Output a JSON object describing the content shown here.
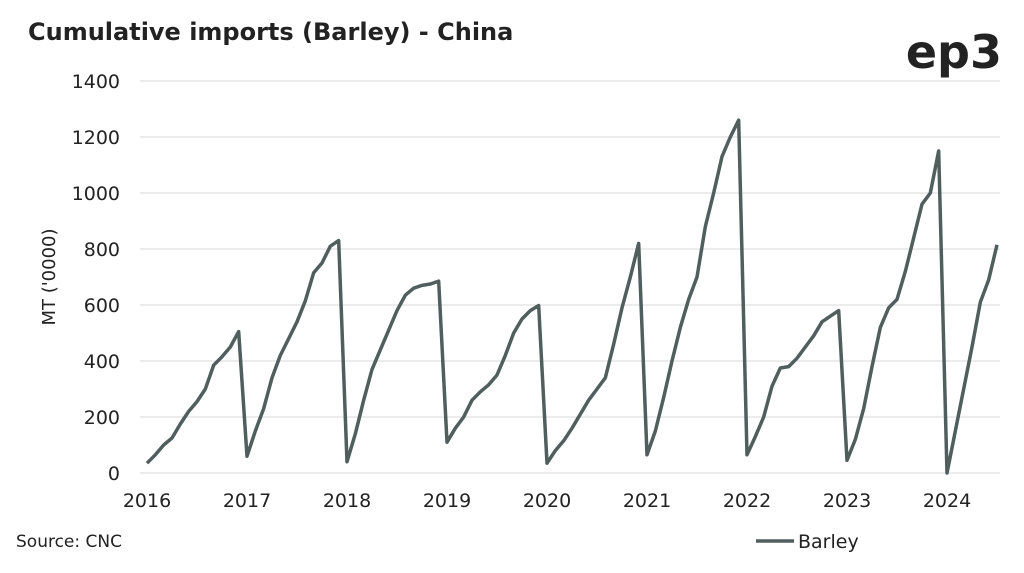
{
  "chart_data": {
    "type": "line",
    "title": "Cumulative imports (Barley) - China",
    "brand": "ep3",
    "source": "Source: CNC",
    "y_label": "MT ('0000)",
    "categories": [
      "2016",
      null,
      null,
      null,
      null,
      null,
      null,
      null,
      null,
      null,
      null,
      null,
      "2017",
      null,
      null,
      null,
      null,
      null,
      null,
      null,
      null,
      null,
      null,
      null,
      "2018",
      null,
      null,
      null,
      null,
      null,
      null,
      null,
      null,
      null,
      null,
      null,
      "2019",
      null,
      null,
      null,
      null,
      null,
      null,
      null,
      null,
      null,
      null,
      null,
      "2020",
      null,
      null,
      null,
      null,
      null,
      null,
      null,
      null,
      null,
      null,
      null,
      "2021",
      null,
      null,
      null,
      null,
      null,
      null,
      null,
      null,
      null,
      null,
      null,
      "2022",
      null,
      null,
      null,
      null,
      null,
      null,
      null,
      null,
      null,
      null,
      null,
      "2023",
      null,
      null,
      null,
      null,
      null,
      null,
      null,
      null,
      null,
      null,
      null,
      "2024",
      null,
      null,
      null,
      null,
      null,
      null
    ],
    "series": [
      {
        "name": "Barley",
        "color": "#505e5e",
        "values": [
          35,
          65,
          100,
          125,
          175,
          220,
          255,
          300,
          385,
          415,
          450,
          505,
          60,
          150,
          230,
          340,
          420,
          480,
          540,
          615,
          715,
          750,
          810,
          830,
          40,
          140,
          260,
          370,
          440,
          510,
          580,
          635,
          660,
          670,
          675,
          685,
          110,
          160,
          200,
          260,
          290,
          315,
          350,
          420,
          500,
          550,
          580,
          598,
          35,
          80,
          115,
          160,
          210,
          260,
          300,
          340,
          460,
          590,
          700,
          820,
          65,
          150,
          270,
          400,
          520,
          620,
          700,
          880,
          1000,
          1130,
          1200,
          1260,
          65,
          130,
          200,
          310,
          375,
          380,
          410,
          450,
          490,
          540,
          560,
          580,
          45,
          120,
          230,
          380,
          520,
          590,
          620,
          720,
          840,
          960,
          1000,
          1150,
          0,
          150,
          300,
          450,
          610,
          690,
          815
        ]
      }
    ],
    "ylim": [
      0,
      1400
    ],
    "yticks": [
      0,
      200,
      400,
      600,
      800,
      1000,
      1200,
      1400
    ],
    "grid": true,
    "legend": "bottom-right"
  }
}
